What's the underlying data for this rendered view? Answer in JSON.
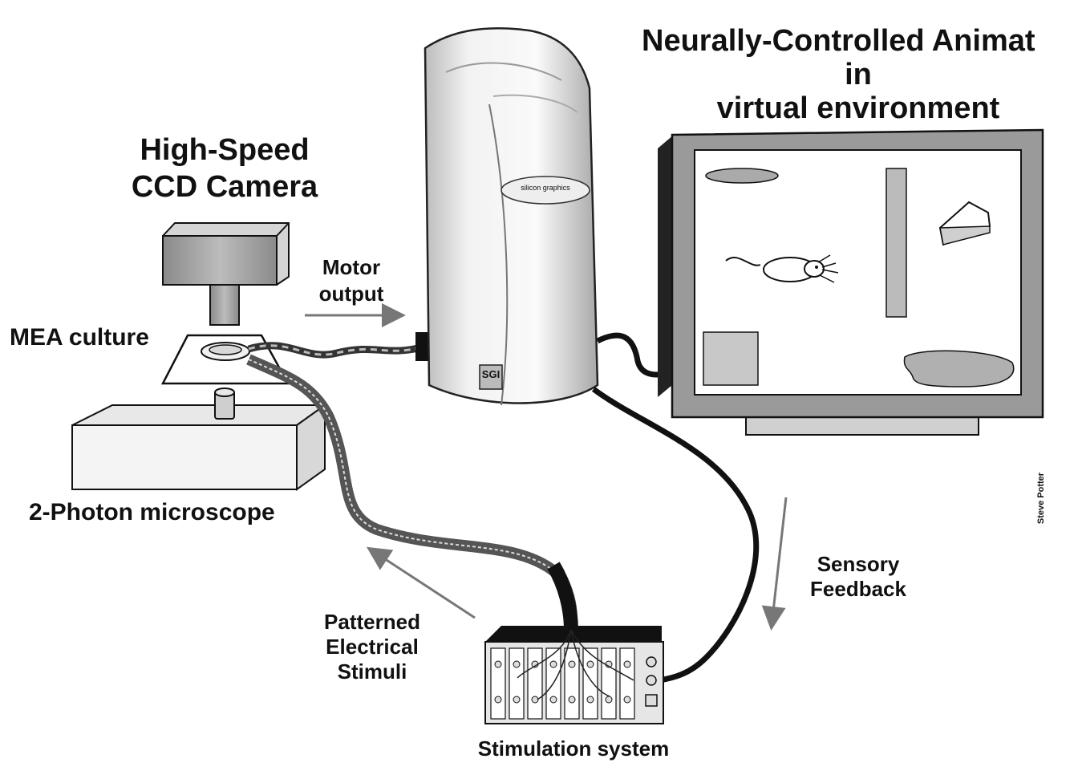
{
  "labels": {
    "title_line1": "Neurally-Controlled Animat",
    "title_line2": "in",
    "title_line3": "virtual environment",
    "camera_line1": "High-Speed",
    "camera_line2": "CCD Camera",
    "mea_culture": "MEA culture",
    "microscope": "2-Photon microscope",
    "motor_line1": "Motor",
    "motor_line2": "output",
    "sensory_line1": "Sensory",
    "sensory_line2": "Feedback",
    "stim_line1": "Patterned",
    "stim_line2": "Electrical",
    "stim_line3": "Stimuli",
    "stimulation_system": "Stimulation system",
    "computer_badge": "silicon graphics",
    "computer_logo": "SGI",
    "credit": "Steve Potter"
  },
  "colors": {
    "ink": "#111111",
    "panel_gray": "#9a9a9a",
    "light_gray": "#c8c8c8",
    "screen": "#ffffff"
  }
}
